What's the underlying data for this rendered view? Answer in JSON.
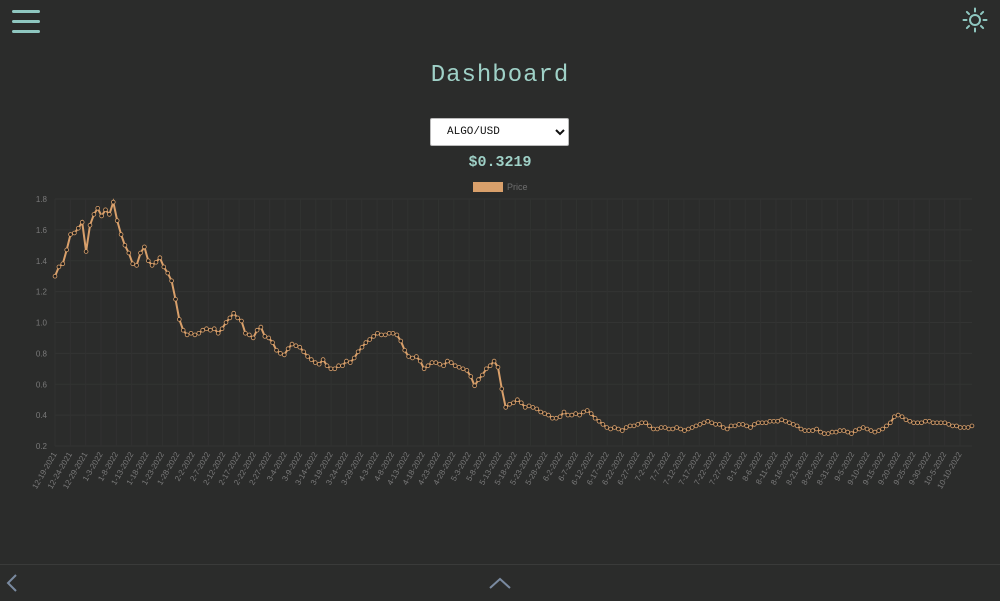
{
  "header": {
    "title": "Dashboard"
  },
  "selector": {
    "selected": "ALGO/USD",
    "options": [
      "ALGO/USD"
    ]
  },
  "price": {
    "current": "$0.3219"
  },
  "icons": {
    "menu": "hamburger-menu-icon",
    "theme": "sun-icon",
    "back": "chevron-left-icon",
    "up": "chevron-up-icon"
  },
  "colors": {
    "background": "#2b2c2b",
    "accent": "#9fd1c7",
    "series": "#d9a06b"
  },
  "chart_data": {
    "type": "line",
    "legend": {
      "position": "top",
      "entries": [
        "Price"
      ]
    },
    "ylim": [
      0.2,
      1.8
    ],
    "yticks": [
      "1.8",
      "1.6",
      "1.4",
      "1.2",
      "1.0",
      "0.8",
      "0.6",
      "0.4",
      "0.2"
    ],
    "xticks": [
      "12-19-2021",
      "12-24-2021",
      "12-29-2021",
      "1-3-2022",
      "1-8-2022",
      "1-13-2022",
      "1-18-2022",
      "1-23-2022",
      "1-28-2022",
      "2-2-2022",
      "2-7-2022",
      "2-12-2022",
      "2-17-2022",
      "2-22-2022",
      "2-27-2022",
      "3-4-2022",
      "3-9-2022",
      "3-14-2022",
      "3-19-2022",
      "3-24-2022",
      "3-29-2022",
      "4-3-2022",
      "4-8-2022",
      "4-13-2022",
      "4-18-2022",
      "4-23-2022",
      "4-28-2022",
      "5-3-2022",
      "5-8-2022",
      "5-13-2022",
      "5-18-2022",
      "5-23-2022",
      "5-28-2022",
      "6-2-2022",
      "6-7-2022",
      "6-12-2022",
      "6-17-2022",
      "6-22-2022",
      "6-27-2022",
      "7-2-2022",
      "7-7-2022",
      "7-12-2022",
      "7-17-2022",
      "7-22-2022",
      "7-27-2022",
      "8-1-2022",
      "8-6-2022",
      "8-11-2022",
      "8-16-2022",
      "8-21-2022",
      "8-26-2022",
      "8-31-2022",
      "9-5-2022",
      "9-10-2022",
      "9-15-2022",
      "9-20-2022",
      "9-25-2022",
      "9-30-2022",
      "10-5-2022",
      "10-10-2022"
    ],
    "grid": true,
    "series": [
      {
        "name": "Price",
        "values": [
          1.3,
          1.36,
          1.38,
          1.47,
          1.57,
          1.58,
          1.61,
          1.65,
          1.46,
          1.63,
          1.7,
          1.74,
          1.69,
          1.73,
          1.7,
          1.78,
          1.66,
          1.57,
          1.5,
          1.45,
          1.38,
          1.37,
          1.45,
          1.49,
          1.4,
          1.37,
          1.39,
          1.42,
          1.36,
          1.32,
          1.27,
          1.15,
          1.02,
          0.95,
          0.92,
          0.93,
          0.92,
          0.93,
          0.95,
          0.96,
          0.95,
          0.96,
          0.93,
          0.96,
          1.0,
          1.03,
          1.06,
          1.03,
          1.01,
          0.93,
          0.92,
          0.9,
          0.95,
          0.97,
          0.91,
          0.9,
          0.87,
          0.82,
          0.8,
          0.79,
          0.83,
          0.86,
          0.85,
          0.84,
          0.81,
          0.78,
          0.76,
          0.74,
          0.73,
          0.76,
          0.72,
          0.7,
          0.7,
          0.72,
          0.72,
          0.75,
          0.74,
          0.77,
          0.81,
          0.84,
          0.87,
          0.89,
          0.91,
          0.93,
          0.92,
          0.92,
          0.93,
          0.93,
          0.92,
          0.88,
          0.82,
          0.78,
          0.77,
          0.78,
          0.75,
          0.7,
          0.72,
          0.74,
          0.74,
          0.73,
          0.72,
          0.75,
          0.74,
          0.72,
          0.71,
          0.7,
          0.69,
          0.65,
          0.59,
          0.63,
          0.66,
          0.7,
          0.72,
          0.75,
          0.71,
          0.57,
          0.45,
          0.47,
          0.48,
          0.5,
          0.48,
          0.45,
          0.46,
          0.45,
          0.44,
          0.42,
          0.41,
          0.4,
          0.38,
          0.38,
          0.39,
          0.42,
          0.4,
          0.4,
          0.41,
          0.4,
          0.42,
          0.43,
          0.41,
          0.38,
          0.36,
          0.34,
          0.32,
          0.31,
          0.32,
          0.31,
          0.3,
          0.32,
          0.33,
          0.33,
          0.34,
          0.35,
          0.35,
          0.33,
          0.31,
          0.31,
          0.32,
          0.32,
          0.31,
          0.31,
          0.32,
          0.31,
          0.3,
          0.31,
          0.32,
          0.33,
          0.34,
          0.35,
          0.36,
          0.35,
          0.34,
          0.34,
          0.32,
          0.31,
          0.33,
          0.33,
          0.34,
          0.34,
          0.33,
          0.32,
          0.34,
          0.35,
          0.35,
          0.35,
          0.36,
          0.36,
          0.36,
          0.37,
          0.36,
          0.35,
          0.34,
          0.33,
          0.31,
          0.3,
          0.3,
          0.3,
          0.31,
          0.29,
          0.28,
          0.28,
          0.29,
          0.29,
          0.3,
          0.3,
          0.29,
          0.28,
          0.3,
          0.31,
          0.32,
          0.31,
          0.3,
          0.29,
          0.3,
          0.31,
          0.33,
          0.35,
          0.39,
          0.4,
          0.39,
          0.37,
          0.36,
          0.35,
          0.35,
          0.35,
          0.36,
          0.36,
          0.35,
          0.35,
          0.35,
          0.35,
          0.34,
          0.33,
          0.33,
          0.32,
          0.32,
          0.32,
          0.33
        ]
      }
    ]
  }
}
